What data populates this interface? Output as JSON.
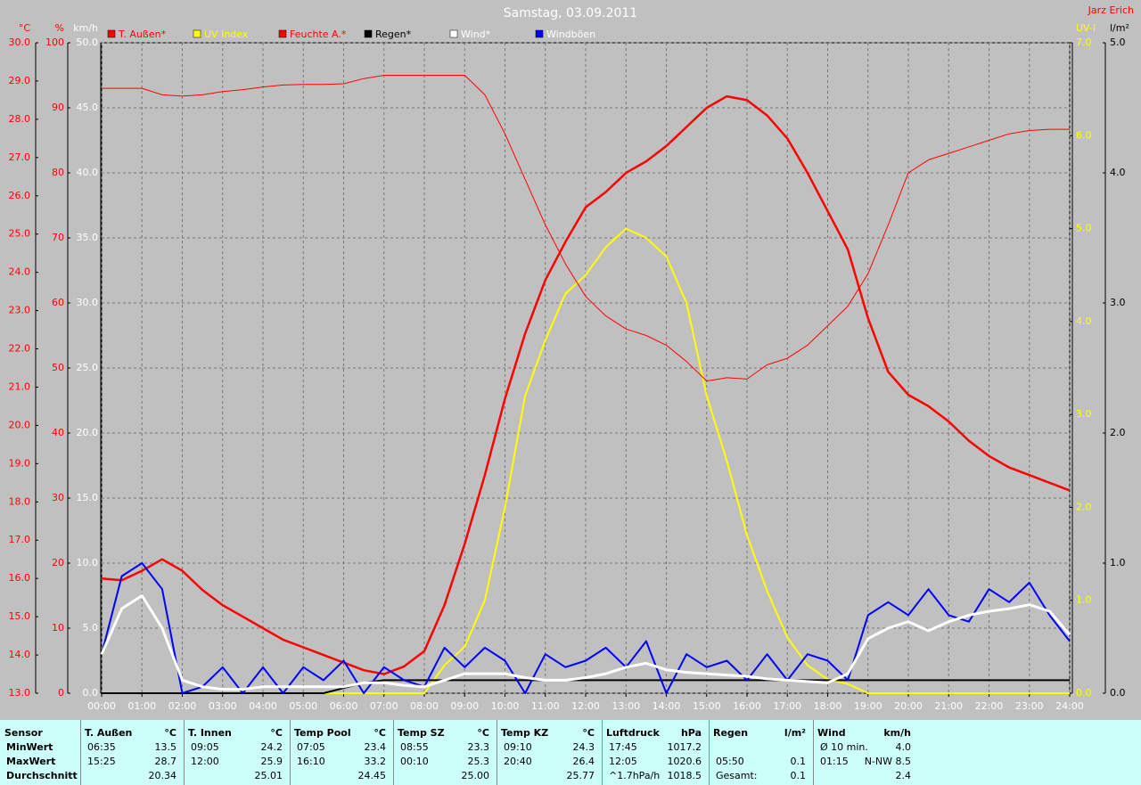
{
  "chart_data": {
    "type": "line",
    "title": "Samstag, 03.09.2011",
    "author": "Jarz Erich",
    "grid": true,
    "x": [
      0,
      0.5,
      1,
      1.5,
      2,
      2.5,
      3,
      3.5,
      4,
      4.5,
      5,
      5.5,
      6,
      6.5,
      7,
      7.5,
      8,
      8.5,
      9,
      9.5,
      10,
      10.5,
      11,
      11.5,
      12,
      12.5,
      13,
      13.5,
      14,
      14.5,
      15,
      15.5,
      16,
      16.5,
      17,
      17.5,
      18,
      18.5,
      19,
      19.5,
      20,
      20.5,
      21,
      21.5,
      22,
      22.5,
      23,
      23.5,
      24
    ],
    "xlim": [
      0,
      24
    ],
    "xticks": [
      {
        "value": 0,
        "label": "00:00"
      },
      {
        "value": 1,
        "label": "01:00"
      },
      {
        "value": 2,
        "label": "02:00"
      },
      {
        "value": 3,
        "label": "03:00"
      },
      {
        "value": 4,
        "label": "04:00"
      },
      {
        "value": 5,
        "label": "05:00"
      },
      {
        "value": 6,
        "label": "06:00"
      },
      {
        "value": 7,
        "label": "07:00"
      },
      {
        "value": 8,
        "label": "08:00"
      },
      {
        "value": 9,
        "label": "09:00"
      },
      {
        "value": 10,
        "label": "10:00"
      },
      {
        "value": 11,
        "label": "11:00"
      },
      {
        "value": 12,
        "label": "12:00"
      },
      {
        "value": 13,
        "label": "13:00"
      },
      {
        "value": 14,
        "label": "14:00"
      },
      {
        "value": 15,
        "label": "15:00"
      },
      {
        "value": 16,
        "label": "16:00"
      },
      {
        "value": 17,
        "label": "17:00"
      },
      {
        "value": 18,
        "label": "18:00"
      },
      {
        "value": 19,
        "label": "19:00"
      },
      {
        "value": 20,
        "label": "20:00"
      },
      {
        "value": 21,
        "label": "21:00"
      },
      {
        "value": 22,
        "label": "22:00"
      },
      {
        "value": 23,
        "label": "23:00"
      },
      {
        "value": 24,
        "label": "24:00"
      }
    ],
    "axes": [
      {
        "label": "°C",
        "side": "left",
        "color": "#ff0000",
        "lim": [
          13,
          30
        ],
        "ticks": [
          {
            "value": 13,
            "label": "13.0"
          },
          {
            "value": 14,
            "label": "14.0"
          },
          {
            "value": 15,
            "label": "15.0"
          },
          {
            "value": 16,
            "label": "16.0"
          },
          {
            "value": 17,
            "label": "17.0"
          },
          {
            "value": 18,
            "label": "18.0"
          },
          {
            "value": 19,
            "label": "19.0"
          },
          {
            "value": 20,
            "label": "20.0"
          },
          {
            "value": 21,
            "label": "21.0"
          },
          {
            "value": 22,
            "label": "22.0"
          },
          {
            "value": 23,
            "label": "23.0"
          },
          {
            "value": 24,
            "label": "24.0"
          },
          {
            "value": 25,
            "label": "25.0"
          },
          {
            "value": 26,
            "label": "26.0"
          },
          {
            "value": 27,
            "label": "27.0"
          },
          {
            "value": 28,
            "label": "28.0"
          },
          {
            "value": 29,
            "label": "29.0"
          },
          {
            "value": 30,
            "label": "30.0"
          }
        ]
      },
      {
        "label": "%",
        "side": "left",
        "color": "#ff0000",
        "lim": [
          0,
          100
        ],
        "ticks": [
          0,
          10,
          20,
          30,
          40,
          50,
          60,
          70,
          80,
          90,
          100
        ]
      },
      {
        "label": "km/h",
        "side": "left",
        "color": "#ffffff",
        "lim": [
          0,
          50
        ],
        "grid": true,
        "ticks": [
          {
            "value": 0,
            "label": "0.0"
          },
          {
            "value": 5,
            "label": "5.0"
          },
          {
            "value": 10,
            "label": "10.0"
          },
          {
            "value": 15,
            "label": "15.0"
          },
          {
            "value": 20,
            "label": "20.0"
          },
          {
            "value": 25,
            "label": "25.0"
          },
          {
            "value": 30,
            "label": "30.0"
          },
          {
            "value": 35,
            "label": "35.0"
          },
          {
            "value": 40,
            "label": "40.0"
          },
          {
            "value": 45,
            "label": "45.0"
          },
          {
            "value": 50,
            "label": "50.0"
          }
        ]
      },
      {
        "label": "UV-I",
        "side": "right",
        "color": "#ffff00",
        "lim": [
          0,
          7
        ],
        "ticks": [
          {
            "value": 0,
            "label": "0.0"
          },
          {
            "value": 1,
            "label": "1.0"
          },
          {
            "value": 2,
            "label": "2.0"
          },
          {
            "value": 3,
            "label": "3.0"
          },
          {
            "value": 4,
            "label": "4.0"
          },
          {
            "value": 5,
            "label": "5.0"
          },
          {
            "value": 6,
            "label": "6.0"
          },
          {
            "value": 7,
            "label": "7.0"
          }
        ]
      },
      {
        "label": "l/m²",
        "side": "right",
        "color": "#000000",
        "lim": [
          0,
          5
        ],
        "ticks": [
          {
            "value": 0,
            "label": "0.0"
          },
          {
            "value": 1,
            "label": "1.0"
          },
          {
            "value": 2,
            "label": "2.0"
          },
          {
            "value": 3,
            "label": "3.0"
          },
          {
            "value": 4,
            "label": "4.0"
          },
          {
            "value": 5,
            "label": "5.0"
          }
        ]
      }
    ],
    "series": [
      {
        "name": "T. Außen*",
        "color": "#ff0000",
        "text_color": "#ff0000",
        "axis": 0,
        "width": 2.5,
        "values": [
          16.0,
          15.95,
          16.2,
          16.5,
          16.2,
          15.7,
          15.3,
          15.0,
          14.7,
          14.4,
          14.2,
          14.0,
          13.8,
          13.6,
          13.5,
          13.7,
          14.1,
          15.3,
          16.9,
          18.7,
          20.7,
          22.4,
          23.8,
          24.8,
          25.7,
          26.1,
          26.6,
          26.9,
          27.3,
          27.8,
          28.3,
          28.6,
          28.5,
          28.1,
          27.5,
          26.6,
          25.6,
          24.6,
          22.8,
          21.4,
          20.8,
          20.5,
          20.1,
          19.6,
          19.2,
          18.9,
          18.7,
          18.5,
          18.3
        ]
      },
      {
        "name": "UV Index",
        "color": "#ffff00",
        "text_color": "#ffff00",
        "axis": 3,
        "width": 2,
        "values": [
          0,
          0,
          0,
          0,
          0,
          0,
          0,
          0,
          0,
          0,
          0,
          0,
          0,
          0,
          0,
          0,
          0,
          0.3,
          0.5,
          1.0,
          2.0,
          3.2,
          3.8,
          4.3,
          4.5,
          4.8,
          5.0,
          4.9,
          4.7,
          4.2,
          3.2,
          2.5,
          1.7,
          1.1,
          0.6,
          0.3,
          0.15,
          0.1,
          0,
          0,
          0,
          0,
          0,
          0,
          0,
          0,
          0,
          0,
          0
        ]
      },
      {
        "name": "Feuchte A.*",
        "color": "#ff0000",
        "text_color": "#ff0000",
        "axis": 1,
        "width": 1,
        "values": [
          93,
          93,
          93,
          92,
          91.8,
          92,
          92.5,
          92.8,
          93.2,
          93.5,
          93.6,
          93.6,
          93.7,
          94.5,
          95,
          95,
          95,
          95,
          95,
          92,
          86,
          79,
          72,
          66,
          61,
          58,
          56,
          55,
          53.5,
          51,
          48,
          48.5,
          48.3,
          50.5,
          51.5,
          53.5,
          56.5,
          59.5,
          64.5,
          72,
          80,
          82,
          83,
          84,
          85,
          86,
          86.5,
          86.7,
          86.7
        ]
      },
      {
        "name": "Regen*",
        "color": "#000000",
        "text_color": "#000000",
        "axis": 4,
        "width": 2,
        "values": [
          0,
          0,
          0,
          0,
          0,
          0,
          0,
          0,
          0,
          0,
          0,
          0,
          0.04,
          0.08,
          0.1,
          0.1,
          0.1,
          0.1,
          0.1,
          0.1,
          0.1,
          0.1,
          0.1,
          0.1,
          0.1,
          0.1,
          0.1,
          0.1,
          0.1,
          0.1,
          0.1,
          0.1,
          0.1,
          0.1,
          0.1,
          0.1,
          0.1,
          0.1,
          0.1,
          0.1,
          0.1,
          0.1,
          0.1,
          0.1,
          0.1,
          0.1,
          0.1,
          0.1,
          0.1
        ]
      },
      {
        "name": "Wind*",
        "color": "#ffffff",
        "text_color": "#ffffff",
        "axis": 2,
        "width": 3,
        "values": [
          3,
          6.5,
          7.5,
          5,
          1,
          0.5,
          0.3,
          0.3,
          0.5,
          0.5,
          0.5,
          0.5,
          0.5,
          0.8,
          0.8,
          0.6,
          0.5,
          1,
          1.5,
          1.5,
          1.5,
          1.2,
          1,
          1,
          1.2,
          1.5,
          2,
          2.3,
          1.8,
          1.6,
          1.5,
          1.4,
          1.3,
          1.1,
          1,
          0.9,
          0.8,
          1.5,
          4.2,
          5,
          5.5,
          4.8,
          5.5,
          6,
          6.3,
          6.5,
          6.8,
          6.3,
          4.5
        ]
      },
      {
        "name": "Windböen",
        "color": "#0000ff",
        "text_color": "#ffffff",
        "axis": 2,
        "width": 2,
        "values": [
          3,
          9,
          10,
          8,
          0,
          0.5,
          2,
          0,
          2,
          0,
          2,
          1,
          2.5,
          0,
          2,
          1,
          0.5,
          3.5,
          2,
          3.5,
          2.5,
          0,
          3,
          2,
          2.5,
          3.5,
          2,
          4,
          0,
          3,
          2,
          2.5,
          1,
          3,
          1,
          3,
          2.5,
          1,
          6,
          7,
          6,
          8,
          6,
          5.5,
          8,
          7,
          8.5,
          6,
          4
        ]
      }
    ]
  },
  "table": {
    "columns": [
      {
        "header": "Sensor",
        "rows": [
          {
            "label": "MinWert"
          },
          {
            "label": "MaxWert"
          },
          {
            "label": "Durchschnitt"
          }
        ]
      },
      {
        "header": "T. Außen",
        "unit": "°C",
        "rows": [
          {
            "time": "06:35",
            "value": "13.5"
          },
          {
            "time": "15:25",
            "value": "28.7"
          },
          {
            "value": "20.34"
          }
        ]
      },
      {
        "header": "T. Innen",
        "unit": "°C",
        "rows": [
          {
            "time": "09:05",
            "value": "24.2"
          },
          {
            "time": "12:00",
            "value": "25.9"
          },
          {
            "value": "25.01"
          }
        ]
      },
      {
        "header": "Temp Pool",
        "unit": "°C",
        "rows": [
          {
            "time": "07:05",
            "value": "23.4"
          },
          {
            "time": "16:10",
            "value": "33.2"
          },
          {
            "value": "24.45"
          }
        ]
      },
      {
        "header": "Temp SZ",
        "unit": "°C",
        "rows": [
          {
            "time": "08:55",
            "value": "23.3"
          },
          {
            "time": "00:10",
            "value": "25.3"
          },
          {
            "value": "25.00"
          }
        ]
      },
      {
        "header": "Temp KZ",
        "unit": "°C",
        "rows": [
          {
            "time": "09:10",
            "value": "24.3"
          },
          {
            "time": "20:40",
            "value": "26.4"
          },
          {
            "value": "25.77"
          }
        ]
      },
      {
        "header": "Luftdruck",
        "unit": "hPa",
        "rows": [
          {
            "time": "17:45",
            "value": "1017.2"
          },
          {
            "time": "12:05",
            "value": "1020.6"
          },
          {
            "time": "^1.7hPa/h",
            "value": "1018.5"
          }
        ]
      },
      {
        "header": "Regen",
        "unit": "l/m²",
        "rows": [
          null,
          {
            "time": "05:50",
            "value": "0.1"
          },
          {
            "time": "Gesamt:",
            "value": "0.1"
          }
        ]
      },
      {
        "header": "Wind",
        "unit": "km/h",
        "rows": [
          {
            "time": "Ø 10 min.",
            "value": "4.0"
          },
          {
            "time": "01:15",
            "value": "N-NW 8.5"
          },
          {
            "value": "2.4"
          }
        ]
      }
    ]
  }
}
